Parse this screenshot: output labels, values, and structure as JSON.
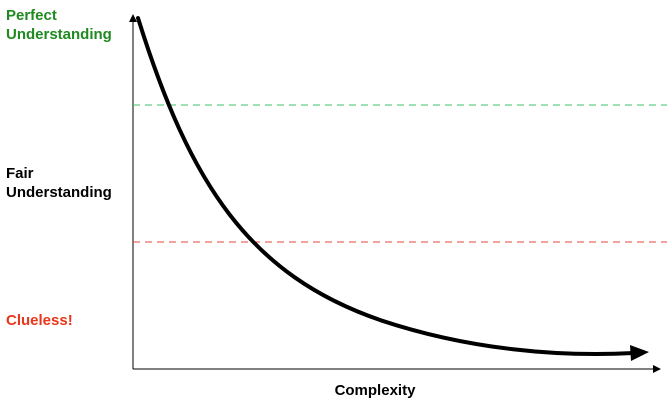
{
  "levels": {
    "perfect": {
      "label": "Perfect\nUnderstanding",
      "color": "#1f8a1f"
    },
    "fair": {
      "label": "Fair\nUnderstanding",
      "color": "#000000"
    },
    "clueless": {
      "label": "Clueless!",
      "color": "#e8361b"
    }
  },
  "thresholds": {
    "perfect_line_color": "#3cc46a",
    "clueless_line_color": "#e8453c"
  },
  "axes": {
    "xlabel": "Complexity",
    "color": "#000000"
  },
  "curve": {
    "shape": "decaying-exponential",
    "color": "#000000"
  }
}
